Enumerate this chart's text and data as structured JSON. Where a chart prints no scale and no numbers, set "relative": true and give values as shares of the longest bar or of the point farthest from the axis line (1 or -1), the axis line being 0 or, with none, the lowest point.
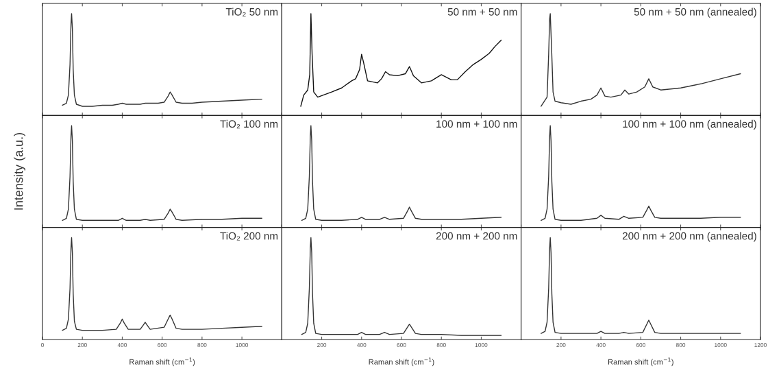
{
  "chart_data": [
    {
      "type": "line",
      "title": "TiO₂ 50 nm",
      "relative": true,
      "color": "#333333",
      "xlim": [
        0,
        1200
      ],
      "xticks": [
        0,
        200,
        400,
        600,
        800,
        1000,
        1200
      ],
      "tick_labels": false,
      "x": [
        100,
        120,
        130,
        138,
        143,
        146,
        150,
        154,
        160,
        170,
        185,
        200,
        250,
        300,
        350,
        380,
        400,
        420,
        450,
        490,
        515,
        540,
        580,
        610,
        630,
        640,
        650,
        670,
        700,
        750,
        800,
        900,
        1000,
        1100
      ],
      "values": [
        0.1,
        0.12,
        0.2,
        0.5,
        0.9,
        1.0,
        0.85,
        0.45,
        0.2,
        0.11,
        0.1,
        0.09,
        0.09,
        0.1,
        0.1,
        0.11,
        0.12,
        0.11,
        0.11,
        0.11,
        0.12,
        0.12,
        0.12,
        0.13,
        0.19,
        0.23,
        0.2,
        0.13,
        0.12,
        0.12,
        0.13,
        0.14,
        0.15,
        0.16
      ]
    },
    {
      "type": "line",
      "title": "50 nm + 50 nm",
      "relative": true,
      "color": "#111111",
      "xlim": [
        0,
        1200
      ],
      "xticks": [
        0,
        200,
        400,
        600,
        800,
        1000,
        1200
      ],
      "tick_labels": false,
      "x": [
        95,
        110,
        130,
        140,
        146,
        152,
        160,
        180,
        250,
        300,
        350,
        370,
        390,
        400,
        410,
        430,
        480,
        500,
        520,
        540,
        580,
        620,
        640,
        660,
        700,
        750,
        800,
        850,
        880,
        920,
        960,
        1000,
        1040,
        1070,
        1090,
        1100
      ],
      "values": [
        0.09,
        0.2,
        0.25,
        0.4,
        1.0,
        0.6,
        0.23,
        0.18,
        0.23,
        0.27,
        0.34,
        0.36,
        0.45,
        0.6,
        0.52,
        0.34,
        0.32,
        0.36,
        0.43,
        0.4,
        0.39,
        0.41,
        0.48,
        0.39,
        0.32,
        0.34,
        0.4,
        0.35,
        0.35,
        0.43,
        0.5,
        0.55,
        0.61,
        0.68,
        0.72,
        0.74
      ]
    },
    {
      "type": "line",
      "title": "50 nm + 50 nm (annealed)",
      "relative": true,
      "color": "#333333",
      "xlim": [
        0,
        1200
      ],
      "xticks": [
        0,
        200,
        400,
        600,
        800,
        1000,
        1200
      ],
      "tick_labels": false,
      "x": [
        100,
        130,
        138,
        143,
        146,
        152,
        160,
        170,
        200,
        250,
        300,
        350,
        380,
        400,
        420,
        450,
        500,
        520,
        540,
        580,
        620,
        640,
        660,
        700,
        800,
        900,
        1000,
        1100
      ],
      "values": [
        0.09,
        0.18,
        0.6,
        0.95,
        1.0,
        0.7,
        0.23,
        0.14,
        0.125,
        0.11,
        0.14,
        0.16,
        0.2,
        0.27,
        0.19,
        0.18,
        0.2,
        0.25,
        0.21,
        0.23,
        0.28,
        0.36,
        0.28,
        0.25,
        0.27,
        0.31,
        0.36,
        0.41
      ]
    },
    {
      "type": "line",
      "title": "TiO₂ 100 nm",
      "ylabel": "Intensity (a.u.)",
      "relative": true,
      "color": "#333333",
      "xlim": [
        0,
        1200
      ],
      "xticks": [
        0,
        200,
        400,
        600,
        800,
        1000,
        1200
      ],
      "tick_labels": false,
      "x": [
        100,
        120,
        130,
        138,
        143,
        146,
        150,
        154,
        160,
        170,
        200,
        300,
        380,
        400,
        420,
        490,
        515,
        540,
        610,
        630,
        640,
        650,
        670,
        700,
        800,
        900,
        1000,
        1100
      ],
      "values": [
        0.07,
        0.09,
        0.18,
        0.5,
        0.9,
        1.0,
        0.85,
        0.45,
        0.18,
        0.08,
        0.07,
        0.07,
        0.07,
        0.09,
        0.07,
        0.07,
        0.08,
        0.07,
        0.08,
        0.14,
        0.18,
        0.15,
        0.08,
        0.07,
        0.08,
        0.08,
        0.09,
        0.09
      ]
    },
    {
      "type": "line",
      "title": "100 nm + 100 nm",
      "relative": true,
      "color": "#333333",
      "xlim": [
        0,
        1200
      ],
      "xticks": [
        0,
        200,
        400,
        600,
        800,
        1000,
        1200
      ],
      "tick_labels": false,
      "x": [
        100,
        120,
        130,
        138,
        143,
        146,
        150,
        154,
        160,
        170,
        200,
        300,
        380,
        400,
        420,
        490,
        515,
        540,
        610,
        630,
        640,
        650,
        670,
        700,
        800,
        900,
        1000,
        1100
      ],
      "values": [
        0.07,
        0.09,
        0.18,
        0.5,
        0.9,
        1.0,
        0.85,
        0.45,
        0.18,
        0.08,
        0.07,
        0.07,
        0.08,
        0.1,
        0.08,
        0.08,
        0.1,
        0.08,
        0.09,
        0.16,
        0.2,
        0.16,
        0.09,
        0.08,
        0.08,
        0.08,
        0.09,
        0.1
      ]
    },
    {
      "type": "line",
      "title": "100 nm + 100 nm (annealed)",
      "relative": true,
      "color": "#333333",
      "xlim": [
        0,
        1200
      ],
      "xticks": [
        0,
        200,
        400,
        600,
        800,
        1000,
        1200
      ],
      "tick_labels": false,
      "x": [
        100,
        120,
        130,
        138,
        143,
        146,
        150,
        154,
        160,
        170,
        200,
        300,
        380,
        400,
        420,
        490,
        515,
        540,
        610,
        630,
        640,
        650,
        670,
        700,
        800,
        900,
        1000,
        1100
      ],
      "values": [
        0.07,
        0.09,
        0.18,
        0.5,
        0.9,
        1.0,
        0.85,
        0.45,
        0.18,
        0.08,
        0.07,
        0.07,
        0.09,
        0.12,
        0.09,
        0.08,
        0.11,
        0.09,
        0.1,
        0.17,
        0.21,
        0.17,
        0.1,
        0.09,
        0.09,
        0.09,
        0.1,
        0.1
      ]
    },
    {
      "type": "line",
      "title": "TiO₂ 200 nm",
      "xlabel": "Raman shift (cm$^{−1}$)",
      "relative": true,
      "color": "#333333",
      "xlim": [
        0,
        1200
      ],
      "xticks": [
        0,
        200,
        400,
        600,
        800,
        1000
      ],
      "x": [
        100,
        120,
        130,
        138,
        143,
        146,
        150,
        154,
        160,
        170,
        200,
        300,
        370,
        390,
        400,
        410,
        430,
        490,
        505,
        515,
        525,
        540,
        610,
        630,
        640,
        650,
        670,
        700,
        800,
        900,
        1000,
        1100
      ],
      "values": [
        0.09,
        0.11,
        0.2,
        0.5,
        0.9,
        1.0,
        0.85,
        0.45,
        0.18,
        0.1,
        0.09,
        0.09,
        0.1,
        0.16,
        0.2,
        0.16,
        0.1,
        0.1,
        0.14,
        0.17,
        0.14,
        0.1,
        0.12,
        0.2,
        0.24,
        0.2,
        0.11,
        0.1,
        0.1,
        0.11,
        0.12,
        0.13
      ]
    },
    {
      "type": "line",
      "title": "200 nm + 200 nm",
      "xlabel": "Raman shift (cm$^{−1}$)",
      "relative": true,
      "color": "#333333",
      "xlim": [
        0,
        1200
      ],
      "xticks": [
        200,
        400,
        600,
        800,
        1000
      ],
      "x": [
        100,
        120,
        130,
        138,
        143,
        146,
        150,
        154,
        160,
        170,
        200,
        300,
        380,
        400,
        420,
        490,
        515,
        540,
        610,
        630,
        640,
        650,
        670,
        700,
        800,
        900,
        1000,
        1100
      ],
      "values": [
        0.05,
        0.07,
        0.16,
        0.5,
        0.9,
        1.0,
        0.85,
        0.45,
        0.16,
        0.06,
        0.05,
        0.05,
        0.05,
        0.07,
        0.05,
        0.05,
        0.07,
        0.05,
        0.06,
        0.12,
        0.15,
        0.12,
        0.06,
        0.05,
        0.05,
        0.04,
        0.04,
        0.04
      ]
    },
    {
      "type": "line",
      "title": "200 nm + 200 nm (annealed)",
      "xlabel": "Raman shift (cm$^{−1}$)",
      "relative": true,
      "color": "#333333",
      "xlim": [
        0,
        1200
      ],
      "xticks": [
        200,
        400,
        600,
        800,
        1000,
        1200
      ],
      "x": [
        100,
        120,
        130,
        138,
        143,
        146,
        150,
        154,
        160,
        170,
        200,
        300,
        380,
        400,
        420,
        490,
        515,
        540,
        610,
        630,
        640,
        650,
        670,
        700,
        800,
        900,
        1000,
        1100
      ],
      "values": [
        0.06,
        0.08,
        0.17,
        0.5,
        0.9,
        1.0,
        0.85,
        0.45,
        0.17,
        0.07,
        0.06,
        0.06,
        0.06,
        0.08,
        0.06,
        0.06,
        0.07,
        0.06,
        0.07,
        0.15,
        0.19,
        0.15,
        0.07,
        0.06,
        0.06,
        0.06,
        0.06,
        0.06
      ]
    }
  ]
}
